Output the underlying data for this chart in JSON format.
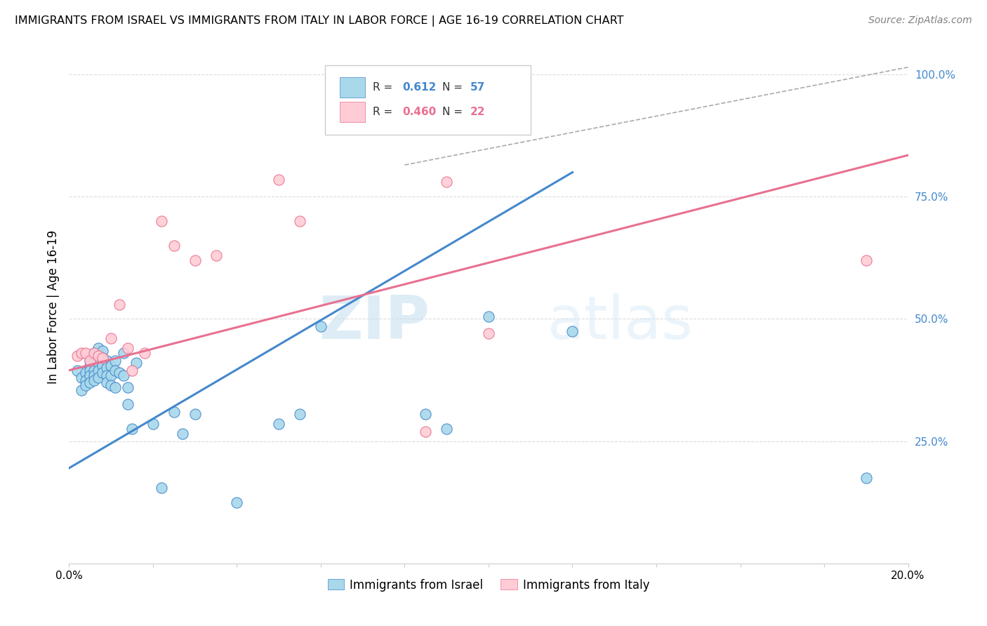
{
  "title": "IMMIGRANTS FROM ISRAEL VS IMMIGRANTS FROM ITALY IN LABOR FORCE | AGE 16-19 CORRELATION CHART",
  "source": "Source: ZipAtlas.com",
  "ylabel_label": "In Labor Force | Age 16-19",
  "legend_blue_r": "0.612",
  "legend_blue_n": "57",
  "legend_pink_r": "0.460",
  "legend_pink_n": "22",
  "xmin": 0.0,
  "xmax": 0.2,
  "ymin": 0.0,
  "ymax": 1.05,
  "yticks": [
    0.25,
    0.5,
    0.75,
    1.0
  ],
  "ytick_labels": [
    "25.0%",
    "50.0%",
    "75.0%",
    "100.0%"
  ],
  "blue_scatter_x": [
    0.002,
    0.003,
    0.003,
    0.004,
    0.004,
    0.004,
    0.005,
    0.005,
    0.005,
    0.005,
    0.005,
    0.006,
    0.006,
    0.006,
    0.006,
    0.006,
    0.006,
    0.007,
    0.007,
    0.007,
    0.007,
    0.007,
    0.008,
    0.008,
    0.008,
    0.008,
    0.009,
    0.009,
    0.009,
    0.009,
    0.01,
    0.01,
    0.01,
    0.011,
    0.011,
    0.011,
    0.012,
    0.013,
    0.013,
    0.014,
    0.014,
    0.015,
    0.016,
    0.02,
    0.022,
    0.025,
    0.027,
    0.03,
    0.04,
    0.05,
    0.055,
    0.06,
    0.085,
    0.09,
    0.1,
    0.12,
    0.19
  ],
  "blue_scatter_y": [
    0.395,
    0.38,
    0.355,
    0.39,
    0.375,
    0.365,
    0.415,
    0.405,
    0.395,
    0.385,
    0.37,
    0.43,
    0.42,
    0.41,
    0.395,
    0.385,
    0.375,
    0.44,
    0.42,
    0.41,
    0.395,
    0.38,
    0.435,
    0.42,
    0.405,
    0.39,
    0.415,
    0.4,
    0.385,
    0.37,
    0.405,
    0.385,
    0.365,
    0.415,
    0.395,
    0.36,
    0.39,
    0.43,
    0.385,
    0.36,
    0.325,
    0.275,
    0.41,
    0.285,
    0.155,
    0.31,
    0.265,
    0.305,
    0.125,
    0.285,
    0.305,
    0.485,
    0.305,
    0.275,
    0.505,
    0.475,
    0.175
  ],
  "pink_scatter_x": [
    0.002,
    0.003,
    0.004,
    0.005,
    0.006,
    0.007,
    0.008,
    0.01,
    0.012,
    0.014,
    0.015,
    0.018,
    0.022,
    0.025,
    0.03,
    0.035,
    0.05,
    0.055,
    0.085,
    0.09,
    0.1,
    0.19
  ],
  "pink_scatter_y": [
    0.425,
    0.43,
    0.43,
    0.415,
    0.43,
    0.425,
    0.42,
    0.46,
    0.53,
    0.44,
    0.395,
    0.43,
    0.7,
    0.65,
    0.62,
    0.63,
    0.785,
    0.7,
    0.27,
    0.78,
    0.47,
    0.62
  ],
  "blue_line_x": [
    0.0,
    0.12
  ],
  "blue_line_y": [
    0.195,
    0.8
  ],
  "pink_line_x": [
    0.0,
    0.2
  ],
  "pink_line_y": [
    0.395,
    0.835
  ],
  "diag_line_x": [
    0.08,
    0.2
  ],
  "diag_line_y": [
    0.815,
    1.015
  ],
  "blue_color": "#a8d8ea",
  "pink_color": "#ffccd5",
  "blue_line_color": "#4488cc",
  "pink_line_color": "#e87090",
  "diag_line_color": "#aaaaaa",
  "watermark_zip": "ZIP",
  "watermark_atlas": "atlas",
  "background_color": "#ffffff",
  "grid_color": "#dddddd",
  "grid_style": "--"
}
